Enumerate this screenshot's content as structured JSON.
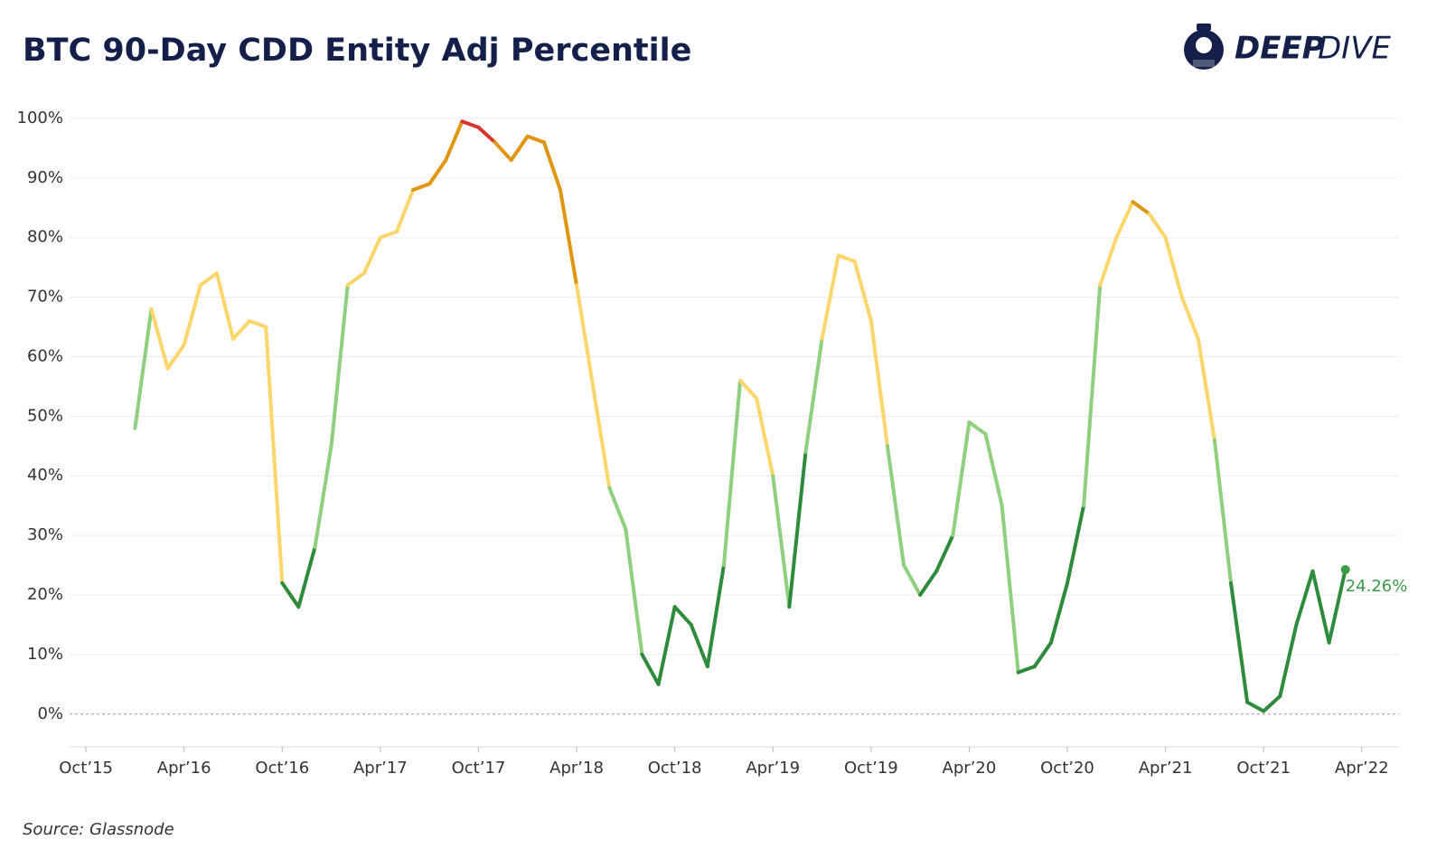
{
  "chart_data": {
    "type": "line",
    "title": "BTC 90-Day CDD Entity Adj Percentile",
    "brand": [
      "DEEP",
      "DIVE"
    ],
    "source": "Source: Glassnode",
    "x": [
      "2016-01",
      "2016-02",
      "2016-03",
      "2016-04",
      "2016-05",
      "2016-06",
      "2016-07",
      "2016-08",
      "2016-09",
      "2016-10",
      "2016-11",
      "2016-12",
      "2017-01",
      "2017-02",
      "2017-03",
      "2017-04",
      "2017-05",
      "2017-06",
      "2017-07",
      "2017-08",
      "2017-09",
      "2017-10",
      "2017-11",
      "2017-12",
      "2018-01",
      "2018-02",
      "2018-03",
      "2018-04",
      "2018-05",
      "2018-06",
      "2018-07",
      "2018-08",
      "2018-09",
      "2018-10",
      "2018-11",
      "2018-12",
      "2019-01",
      "2019-02",
      "2019-03",
      "2019-04",
      "2019-05",
      "2019-06",
      "2019-07",
      "2019-08",
      "2019-09",
      "2019-10",
      "2019-11",
      "2019-12",
      "2020-01",
      "2020-02",
      "2020-03",
      "2020-04",
      "2020-05",
      "2020-06",
      "2020-07",
      "2020-08",
      "2020-09",
      "2020-10",
      "2020-11",
      "2020-12",
      "2021-01",
      "2021-02",
      "2021-03",
      "2021-04",
      "2021-05",
      "2021-06",
      "2021-07",
      "2021-08",
      "2021-09",
      "2021-10",
      "2021-11",
      "2021-12",
      "2022-01",
      "2022-02",
      "2022-03"
    ],
    "series": [
      {
        "name": "90-Day CDD Entity Adj Percentile",
        "values": [
          48,
          68,
          58,
          62,
          72,
          74,
          63,
          66,
          65,
          22,
          18,
          28,
          45,
          72,
          74,
          80,
          81,
          88,
          89,
          93,
          99.5,
          98.5,
          96,
          93,
          97,
          96,
          88,
          72,
          55,
          38,
          31,
          10,
          5,
          18,
          15,
          8,
          25,
          56,
          53,
          40,
          18,
          44,
          63,
          77,
          76,
          66,
          45,
          25,
          20,
          24,
          30,
          49,
          47,
          35,
          7,
          8,
          12,
          22,
          35,
          72,
          80,
          86,
          84,
          80,
          70,
          63,
          46,
          22,
          2,
          0.5,
          3,
          15,
          24,
          12,
          24.26
        ],
        "colors": [
          "#8fd07f",
          "#fdd66b",
          "#fdd66b",
          "#fdd66b",
          "#fdd66b",
          "#fdd66b",
          "#fdd66b",
          "#fdd66b",
          "#fdd66b",
          "#2e8b3c",
          "#2e8b3c",
          "#8fd07f",
          "#8fd07f",
          "#fdd66b",
          "#fdd66b",
          "#fdd66b",
          "#fdd66b",
          "#e0960f",
          "#e0960f",
          "#e0960f",
          "#d9342b",
          "#d9342b",
          "#e0960f",
          "#e0960f",
          "#e0960f",
          "#e0960f",
          "#e0960f",
          "#fdd66b",
          "#fdd66b",
          "#8fd07f",
          "#8fd07f",
          "#2e8b3c",
          "#2e8b3c",
          "#2e8b3c",
          "#2e8b3c",
          "#2e8b3c",
          "#8fd07f",
          "#fdd66b",
          "#fdd66b",
          "#8fd07f",
          "#2e8b3c",
          "#8fd07f",
          "#fdd66b",
          "#fdd66b",
          "#fdd66b",
          "#fdd66b",
          "#8fd07f",
          "#8fd07f",
          "#2e8b3c",
          "#2e8b3c",
          "#8fd07f",
          "#8fd07f",
          "#8fd07f",
          "#8fd07f",
          "#2e8b3c",
          "#2e8b3c",
          "#2e8b3c",
          "#2e8b3c",
          "#8fd07f",
          "#fdd66b",
          "#fdd66b",
          "#e0960f",
          "#fdd66b",
          "#fdd66b",
          "#fdd66b",
          "#fdd66b",
          "#8fd07f",
          "#2e8b3c",
          "#2e8b3c",
          "#2e8b3c",
          "#2e8b3c",
          "#2e8b3c",
          "#2e8b3c",
          "#2e8b3c",
          "#2e8b3c"
        ],
        "value_labels": {
          "74": "24.26%"
        }
      }
    ],
    "xlim": [
      "2015-09",
      "2022-06"
    ],
    "xticks": [
      {
        "value": "2015-10",
        "label": "Oct’15"
      },
      {
        "value": "2016-04",
        "label": "Apr’16"
      },
      {
        "value": "2016-10",
        "label": "Oct’16"
      },
      {
        "value": "2017-04",
        "label": "Apr’17"
      },
      {
        "value": "2017-10",
        "label": "Oct’17"
      },
      {
        "value": "2018-04",
        "label": "Apr’18"
      },
      {
        "value": "2018-10",
        "label": "Oct’18"
      },
      {
        "value": "2019-04",
        "label": "Apr’19"
      },
      {
        "value": "2019-10",
        "label": "Oct’19"
      },
      {
        "value": "2020-04",
        "label": "Apr’20"
      },
      {
        "value": "2020-10",
        "label": "Oct’20"
      },
      {
        "value": "2021-04",
        "label": "Apr’21"
      },
      {
        "value": "2021-10",
        "label": "Oct’21"
      },
      {
        "value": "2022-04",
        "label": "Apr’22"
      }
    ],
    "ylim": [
      -5.5,
      104.7
    ],
    "yticks": [
      {
        "value": 0,
        "label": "0%"
      },
      {
        "value": 10,
        "label": "10%"
      },
      {
        "value": 20,
        "label": "20%"
      },
      {
        "value": 30,
        "label": "30%"
      },
      {
        "value": 40,
        "label": "40%"
      },
      {
        "value": 50,
        "label": "50%"
      },
      {
        "value": 60,
        "label": "60%"
      },
      {
        "value": 70,
        "label": "70%"
      },
      {
        "value": 80,
        "label": "80%"
      },
      {
        "value": 90,
        "label": "90%"
      },
      {
        "value": 100,
        "label": "100%"
      }
    ],
    "grid": true,
    "end_marker_color": "#3d9a47"
  }
}
